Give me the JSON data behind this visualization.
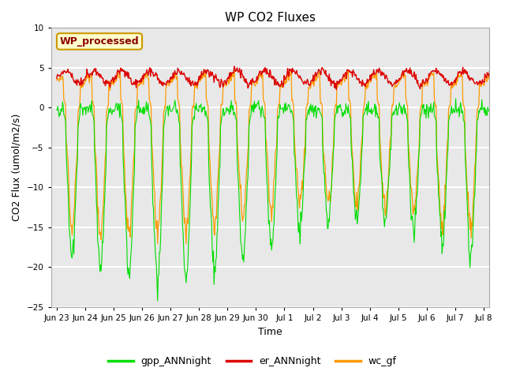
{
  "title": "WP CO2 Fluxes",
  "xlabel": "Time",
  "ylabel": "CO2 Flux (umol/m2/s)",
  "ylim": [
    -25,
    10
  ],
  "yticks": [
    -25,
    -20,
    -15,
    -10,
    -5,
    0,
    5,
    10
  ],
  "plot_bg": "#e8e8e8",
  "grid_color": "white",
  "xtick_labels": [
    "Jun 23",
    "Jun 24",
    "Jun 25",
    "Jun 26",
    "Jun 27",
    "Jun 28",
    "Jun 29",
    "Jun 30",
    "Jul 1",
    "Jul 2",
    "Jul 3",
    "Jul 4",
    "Jul 5",
    "Jul 6",
    "Jul 7",
    "Jul 8"
  ],
  "legend_label": "WP_processed",
  "series_labels": [
    "gpp_ANNnight",
    "er_ANNnight",
    "wc_gf"
  ],
  "colors": [
    "#00dd00",
    "#dd0000",
    "#ff9900"
  ],
  "n_days": 16,
  "pts_per_day": 48
}
